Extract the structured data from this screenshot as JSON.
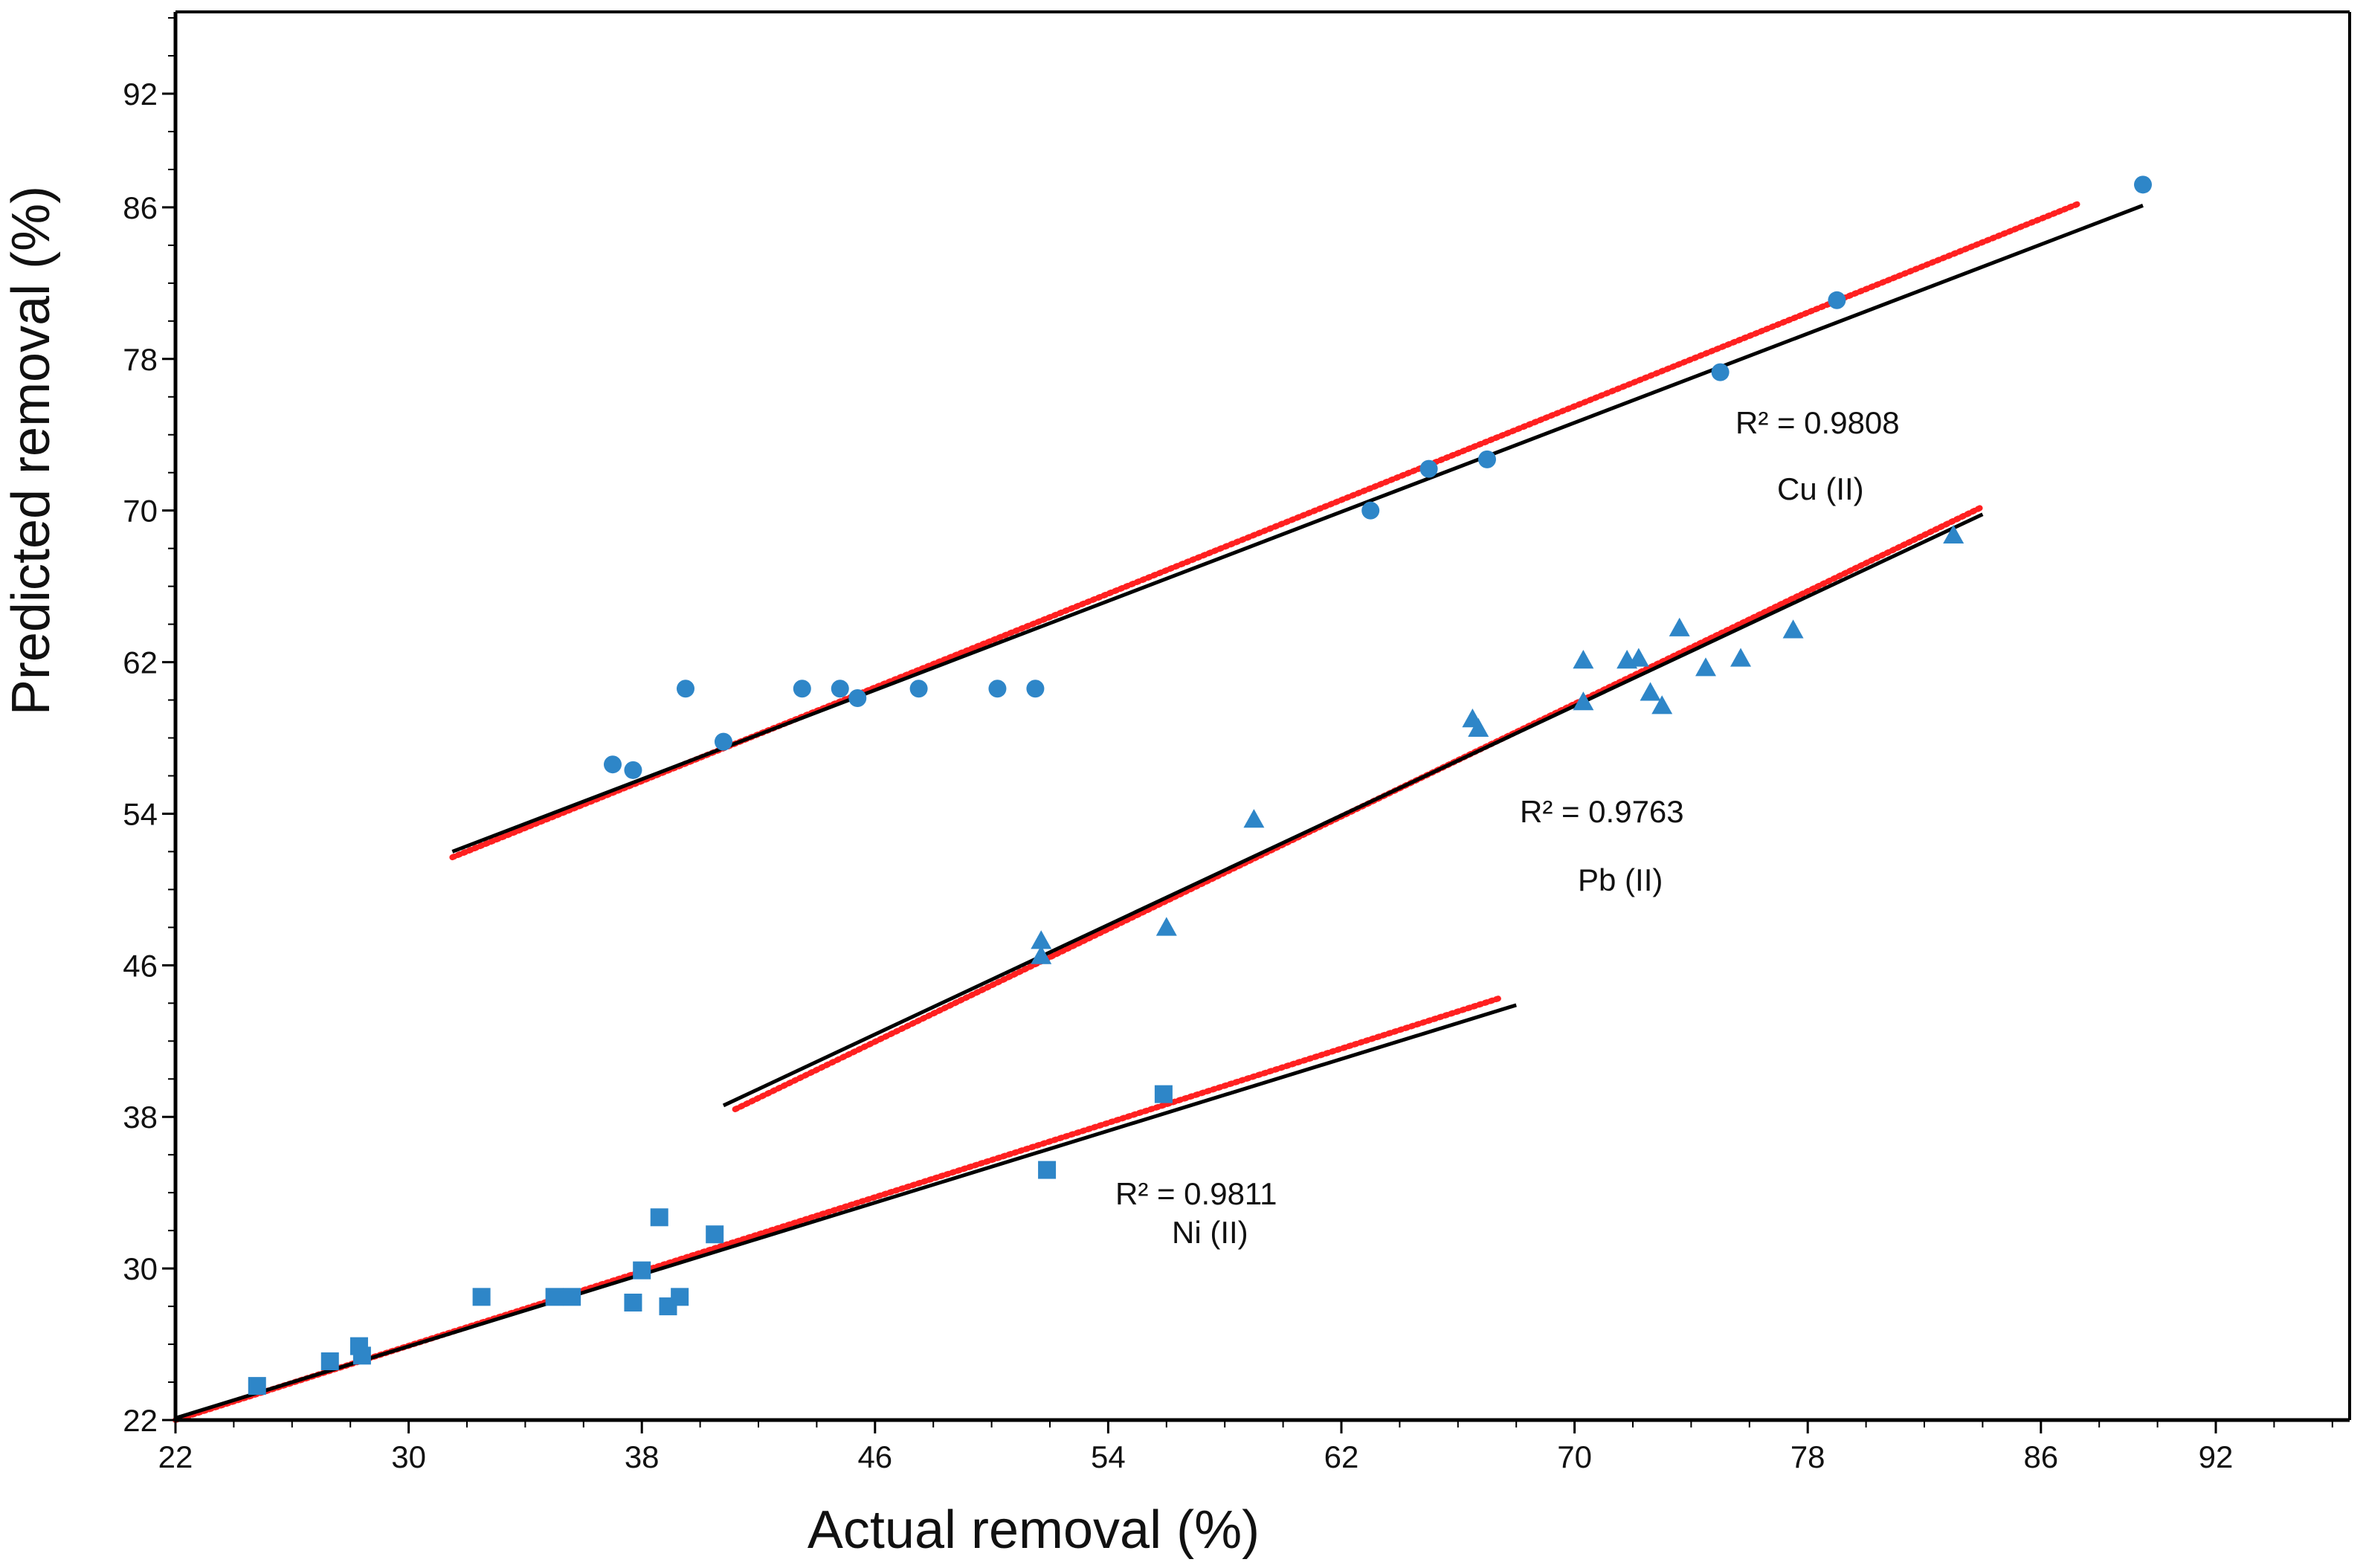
{
  "chart_data": {
    "type": "scatter",
    "title": "",
    "xlabel": "Actual removal (%)",
    "ylabel": "Predicted removal (%)",
    "xlim": [
      22,
      98
    ],
    "ylim": [
      22,
      97
    ],
    "xticks": [
      22,
      30,
      38,
      46,
      54,
      62,
      70,
      78,
      86,
      92
    ],
    "yticks": [
      22,
      30,
      38,
      46,
      54,
      62,
      70,
      78,
      86,
      92
    ],
    "grid": false,
    "colors": {
      "points": "#2e86c8",
      "fit": "#000000",
      "ideal": "#ff2020"
    },
    "series": [
      {
        "name": "Cu (II)",
        "marker": "circle",
        "r2": "R² = 0.9808",
        "points": [
          [
            37.0,
            56.6
          ],
          [
            37.7,
            56.3
          ],
          [
            39.5,
            60.6
          ],
          [
            40.8,
            57.8
          ],
          [
            43.5,
            60.6
          ],
          [
            44.8,
            60.6
          ],
          [
            45.4,
            60.1
          ],
          [
            47.5,
            60.6
          ],
          [
            50.2,
            60.6
          ],
          [
            51.5,
            60.6
          ],
          [
            63.0,
            70.0
          ],
          [
            65.0,
            72.2
          ],
          [
            67.0,
            72.7
          ],
          [
            75.0,
            77.3
          ],
          [
            79.0,
            81.1
          ],
          [
            89.5,
            87.2
          ]
        ],
        "fit": [
          [
            31.5,
            52.0
          ],
          [
            89.5,
            86.1
          ]
        ],
        "ideal": [
          [
            31.5,
            51.7
          ],
          [
            87.3,
            86.2
          ]
        ]
      },
      {
        "name": "Pb (II)",
        "marker": "triangle",
        "r2": "R² = 0.9763",
        "points": [
          [
            51.7,
            47.3
          ],
          [
            51.7,
            46.5
          ],
          [
            56.0,
            48.0
          ],
          [
            59.0,
            53.7
          ],
          [
            66.5,
            59.0
          ],
          [
            66.7,
            58.5
          ],
          [
            70.3,
            62.1
          ],
          [
            70.3,
            59.9
          ],
          [
            71.8,
            62.1
          ],
          [
            72.2,
            62.2
          ],
          [
            72.6,
            60.4
          ],
          [
            73.0,
            59.7
          ],
          [
            73.6,
            63.8
          ],
          [
            74.5,
            61.7
          ],
          [
            75.7,
            62.2
          ],
          [
            77.5,
            63.7
          ],
          [
            83.0,
            68.7
          ]
        ],
        "fit": [
          [
            40.8,
            38.6
          ],
          [
            84.0,
            69.8
          ]
        ],
        "ideal": [
          [
            41.2,
            38.4
          ],
          [
            84.0,
            70.2
          ]
        ]
      },
      {
        "name": "Ni (II)",
        "marker": "square",
        "r2": "R² = 0.9811",
        "points": [
          [
            24.8,
            23.8
          ],
          [
            27.3,
            25.1
          ],
          [
            28.3,
            25.9
          ],
          [
            28.4,
            25.4
          ],
          [
            32.5,
            28.5
          ],
          [
            35.0,
            28.5
          ],
          [
            35.6,
            28.5
          ],
          [
            37.7,
            28.2
          ],
          [
            38.0,
            29.9
          ],
          [
            38.6,
            32.7
          ],
          [
            38.9,
            28.0
          ],
          [
            39.3,
            28.5
          ],
          [
            40.5,
            31.8
          ],
          [
            51.9,
            35.2
          ],
          [
            55.9,
            39.2
          ]
        ],
        "fit": [
          [
            22.0,
            22.1
          ],
          [
            68.0,
            43.9
          ]
        ],
        "ideal": [
          [
            22.0,
            22.0
          ],
          [
            67.5,
            44.3
          ]
        ]
      }
    ]
  }
}
